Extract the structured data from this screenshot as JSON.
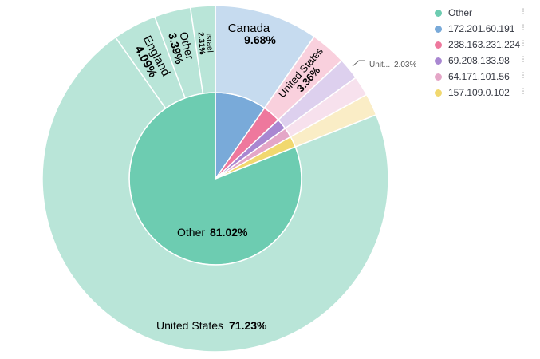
{
  "chart_data": {
    "type": "sunburst",
    "inner_ring": [
      {
        "name": "Other",
        "value": 81.02,
        "label": "Other",
        "pct_label": "81.02%",
        "color": "#6dccb1"
      },
      {
        "name": "172.201.60.191",
        "value": 9.68,
        "color": "#79aad9"
      },
      {
        "name": "238.163.231.224",
        "value": 3.36,
        "color": "#ee789d"
      },
      {
        "name": "69.208.133.98",
        "value": 2.03,
        "color": "#a987d1"
      },
      {
        "name": "64.171.101.56",
        "value": 1.85,
        "color": "#e4a6c7"
      },
      {
        "name": "157.109.0.102",
        "value": 2.06,
        "color": "#f1d86f"
      }
    ],
    "outer_ring": [
      {
        "parent": "172.201.60.191",
        "label": "Canada",
        "value": 9.68,
        "pct_label": "9.68%",
        "color": "#c6dbef"
      },
      {
        "parent": "238.163.231.224",
        "label": "United States",
        "value": 3.36,
        "pct_label": "3.36%",
        "color": "#f9d0dd"
      },
      {
        "parent": "69.208.133.98",
        "label": "Unit...",
        "value": 2.03,
        "pct_label": "2.03%",
        "color": "#ddd0ee"
      },
      {
        "parent": "64.171.101.56",
        "label": "",
        "value": 1.85,
        "pct_label": "",
        "color": "#f7e1ed"
      },
      {
        "parent": "157.109.0.102",
        "label": "",
        "value": 2.06,
        "pct_label": "",
        "color": "#faedc6"
      },
      {
        "parent": "Other",
        "label": "United States",
        "value": 71.23,
        "pct_label": "71.23%",
        "color": "#b9e5d8"
      },
      {
        "parent": "Other",
        "label": "England",
        "value": 4.09,
        "pct_label": "4.09%",
        "color": "#b9e5d8"
      },
      {
        "parent": "Other",
        "label": "Other",
        "value": 3.39,
        "pct_label": "3.39%",
        "color": "#b9e5d8"
      },
      {
        "parent": "Other",
        "label": "Israel",
        "value": 2.31,
        "pct_label": "2.31%",
        "color": "#b9e5d8"
      }
    ],
    "legend_position": "top-right"
  },
  "legend": [
    {
      "label": "Other",
      "color": "#6dccb1"
    },
    {
      "label": "172.201.60.191",
      "color": "#79aad9"
    },
    {
      "label": "238.163.231.224",
      "color": "#ee789d"
    },
    {
      "label": "69.208.133.98",
      "color": "#a987d1"
    },
    {
      "label": "64.171.101.56",
      "color": "#e4a6c7"
    },
    {
      "label": "157.109.0.102",
      "color": "#f1d86f"
    }
  ]
}
